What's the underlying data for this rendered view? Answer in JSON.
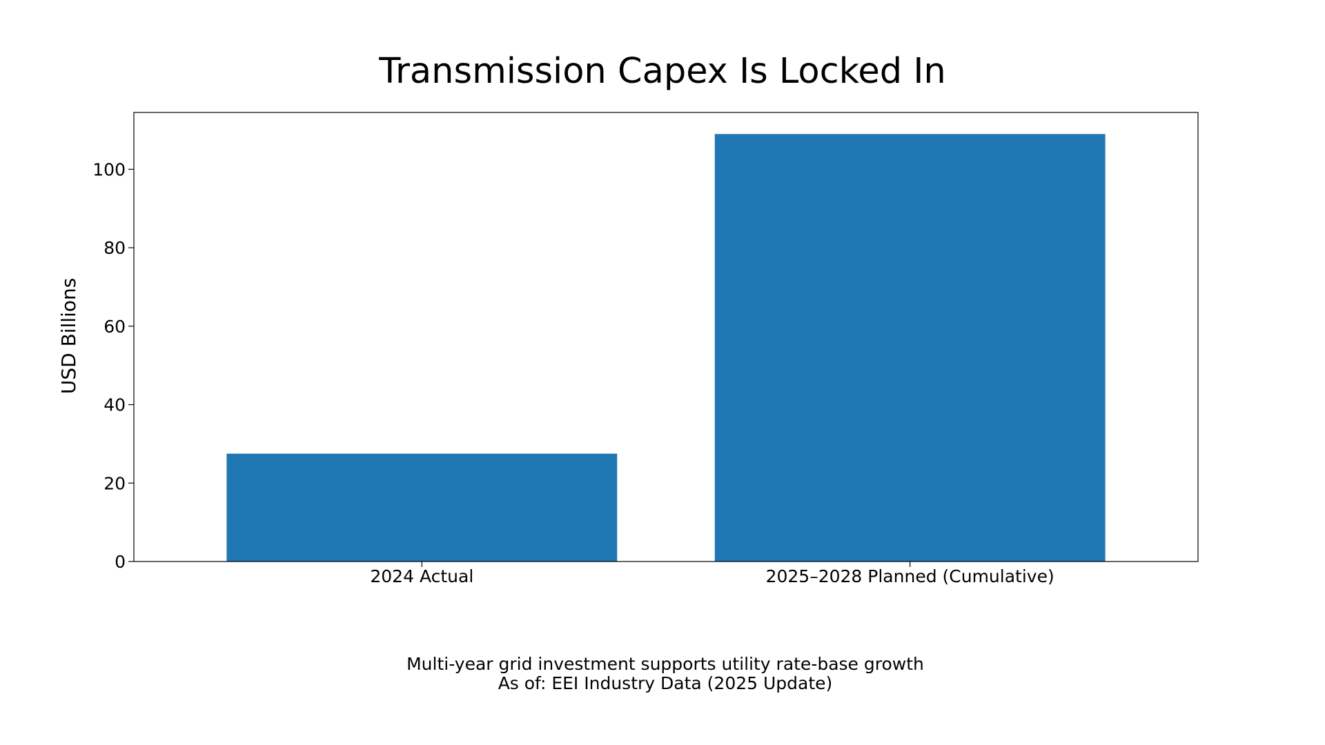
{
  "chart_data": {
    "type": "bar",
    "title": "Transmission Capex Is Locked In",
    "xlabel": "",
    "ylabel": "USD Billions",
    "categories": [
      "2024 Actual",
      "2025–2028 Planned (Cumulative)"
    ],
    "values": [
      27.5,
      109.0
    ],
    "ylim": [
      0,
      114.5
    ],
    "yticks": [
      0,
      20,
      40,
      60,
      80,
      100
    ],
    "grid": false,
    "bar_color": "#1f77b4",
    "caption": {
      "line1": "Multi-year grid investment supports utility rate-base growth",
      "line2": "As of: EEI Industry Data (2025 Update)"
    }
  }
}
